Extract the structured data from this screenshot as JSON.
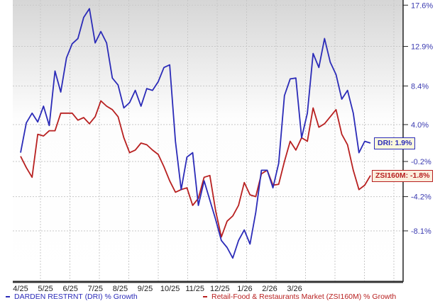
{
  "chart_data": {
    "type": "line",
    "title": "",
    "xlabel": "",
    "ylabel": "",
    "y_axis_position": "right",
    "y_tick_labels": [
      "17.6%",
      "12.9%",
      "8.4%",
      "4.0%",
      "-0.2%",
      "-4.2%",
      "-8.1%"
    ],
    "y_tick_values": [
      17.6,
      12.9,
      8.4,
      4.0,
      -0.2,
      -4.2,
      -8.1
    ],
    "x_tick_labels": [
      "4/25",
      "5/25",
      "6/25",
      "7/25",
      "8/25",
      "9/25",
      "10/25",
      "11/25",
      "12/25",
      "1/26",
      "2/26",
      "3/26"
    ],
    "grid": true,
    "legend_position": "bottom",
    "x": [
      "2025-04-01",
      "2025-04-07",
      "2025-04-13",
      "2025-04-19",
      "2025-04-25",
      "2025-05-01",
      "2025-05-07",
      "2025-05-13",
      "2025-05-19",
      "2025-05-25",
      "2025-05-31",
      "2025-06-06",
      "2025-06-12",
      "2025-06-18",
      "2025-06-24",
      "2025-06-30",
      "2025-07-06",
      "2025-07-12",
      "2025-07-18",
      "2025-07-24",
      "2025-07-30",
      "2025-08-05",
      "2025-08-11",
      "2025-08-17",
      "2025-08-23",
      "2025-08-29",
      "2025-09-04",
      "2025-09-10",
      "2025-09-16",
      "2025-09-22",
      "2025-09-28",
      "2025-10-04",
      "2025-10-10",
      "2025-10-16",
      "2025-10-22",
      "2025-10-28",
      "2025-11-03",
      "2025-11-09",
      "2025-11-15",
      "2025-11-21",
      "2025-11-27",
      "2025-12-03",
      "2025-12-09",
      "2025-12-15",
      "2025-12-21",
      "2025-12-27",
      "2026-01-02",
      "2026-01-08",
      "2026-01-14",
      "2026-01-20",
      "2026-01-26",
      "2026-02-01",
      "2026-02-07",
      "2026-02-13",
      "2026-02-19",
      "2026-02-25",
      "2026-03-03",
      "2026-03-09",
      "2026-03-15",
      "2026-03-21",
      "2026-03-27",
      "2026-04-02"
    ],
    "series": [
      {
        "name": "DARDEN RESTRNT (DRI) % Growth",
        "color": "#2b2bb8",
        "values": [
          0.8,
          4.2,
          5.3,
          4.3,
          6.1,
          3.9,
          10.1,
          7.7,
          11.6,
          13.2,
          13.8,
          16.2,
          17.2,
          13.3,
          14.6,
          13.3,
          9.3,
          8.5,
          5.9,
          6.5,
          7.9,
          6.1,
          8.1,
          7.9,
          8.9,
          10.5,
          10.8,
          2.1,
          -3.4,
          0.3,
          0.8,
          -5.2,
          -2.4,
          -4.6,
          -6.8,
          -9.2,
          -10.0,
          -11.2,
          -9.2,
          -8.0,
          -9.6,
          -6.0,
          -1.2,
          -1.2,
          -3.2,
          -0.4,
          7.3,
          9.2,
          9.3,
          2.5,
          5.3,
          12.1,
          10.5,
          13.8,
          11.1,
          9.7,
          6.9,
          7.9,
          5.3,
          0.8,
          2.1,
          1.9
        ]
      },
      {
        "name": "Retail-Food & Restaurants Market (ZSI160M) % Growth",
        "color": "#b82020",
        "values": [
          0.4,
          -0.9,
          -2.0,
          2.9,
          2.7,
          3.3,
          3.3,
          5.3,
          5.3,
          5.3,
          4.5,
          4.8,
          4.1,
          4.9,
          6.7,
          6.1,
          5.7,
          4.9,
          2.5,
          0.8,
          1.1,
          1.9,
          1.7,
          1.1,
          0.6,
          -0.8,
          -2.4,
          -3.7,
          -3.4,
          -3.2,
          -5.2,
          -4.4,
          -2.0,
          -1.8,
          -5.8,
          -8.8,
          -7.0,
          -6.4,
          -5.2,
          -2.6,
          -4.0,
          -4.2,
          -1.6,
          -1.2,
          -2.9,
          -2.8,
          -0.2,
          2.1,
          1.1,
          2.5,
          2.1,
          5.9,
          3.7,
          4.1,
          4.9,
          5.7,
          2.9,
          1.7,
          -1.2,
          -3.4,
          -2.9,
          -1.8
        ]
      }
    ],
    "callouts": [
      {
        "label": "DRI: 1.9%",
        "value": 1.9,
        "color": "#2b2bb8",
        "bg": "#fbf8dc"
      },
      {
        "label": "ZSI160M: -1.8%",
        "value": -1.8,
        "color": "#b82020",
        "bg": "#fbeedd"
      }
    ]
  }
}
